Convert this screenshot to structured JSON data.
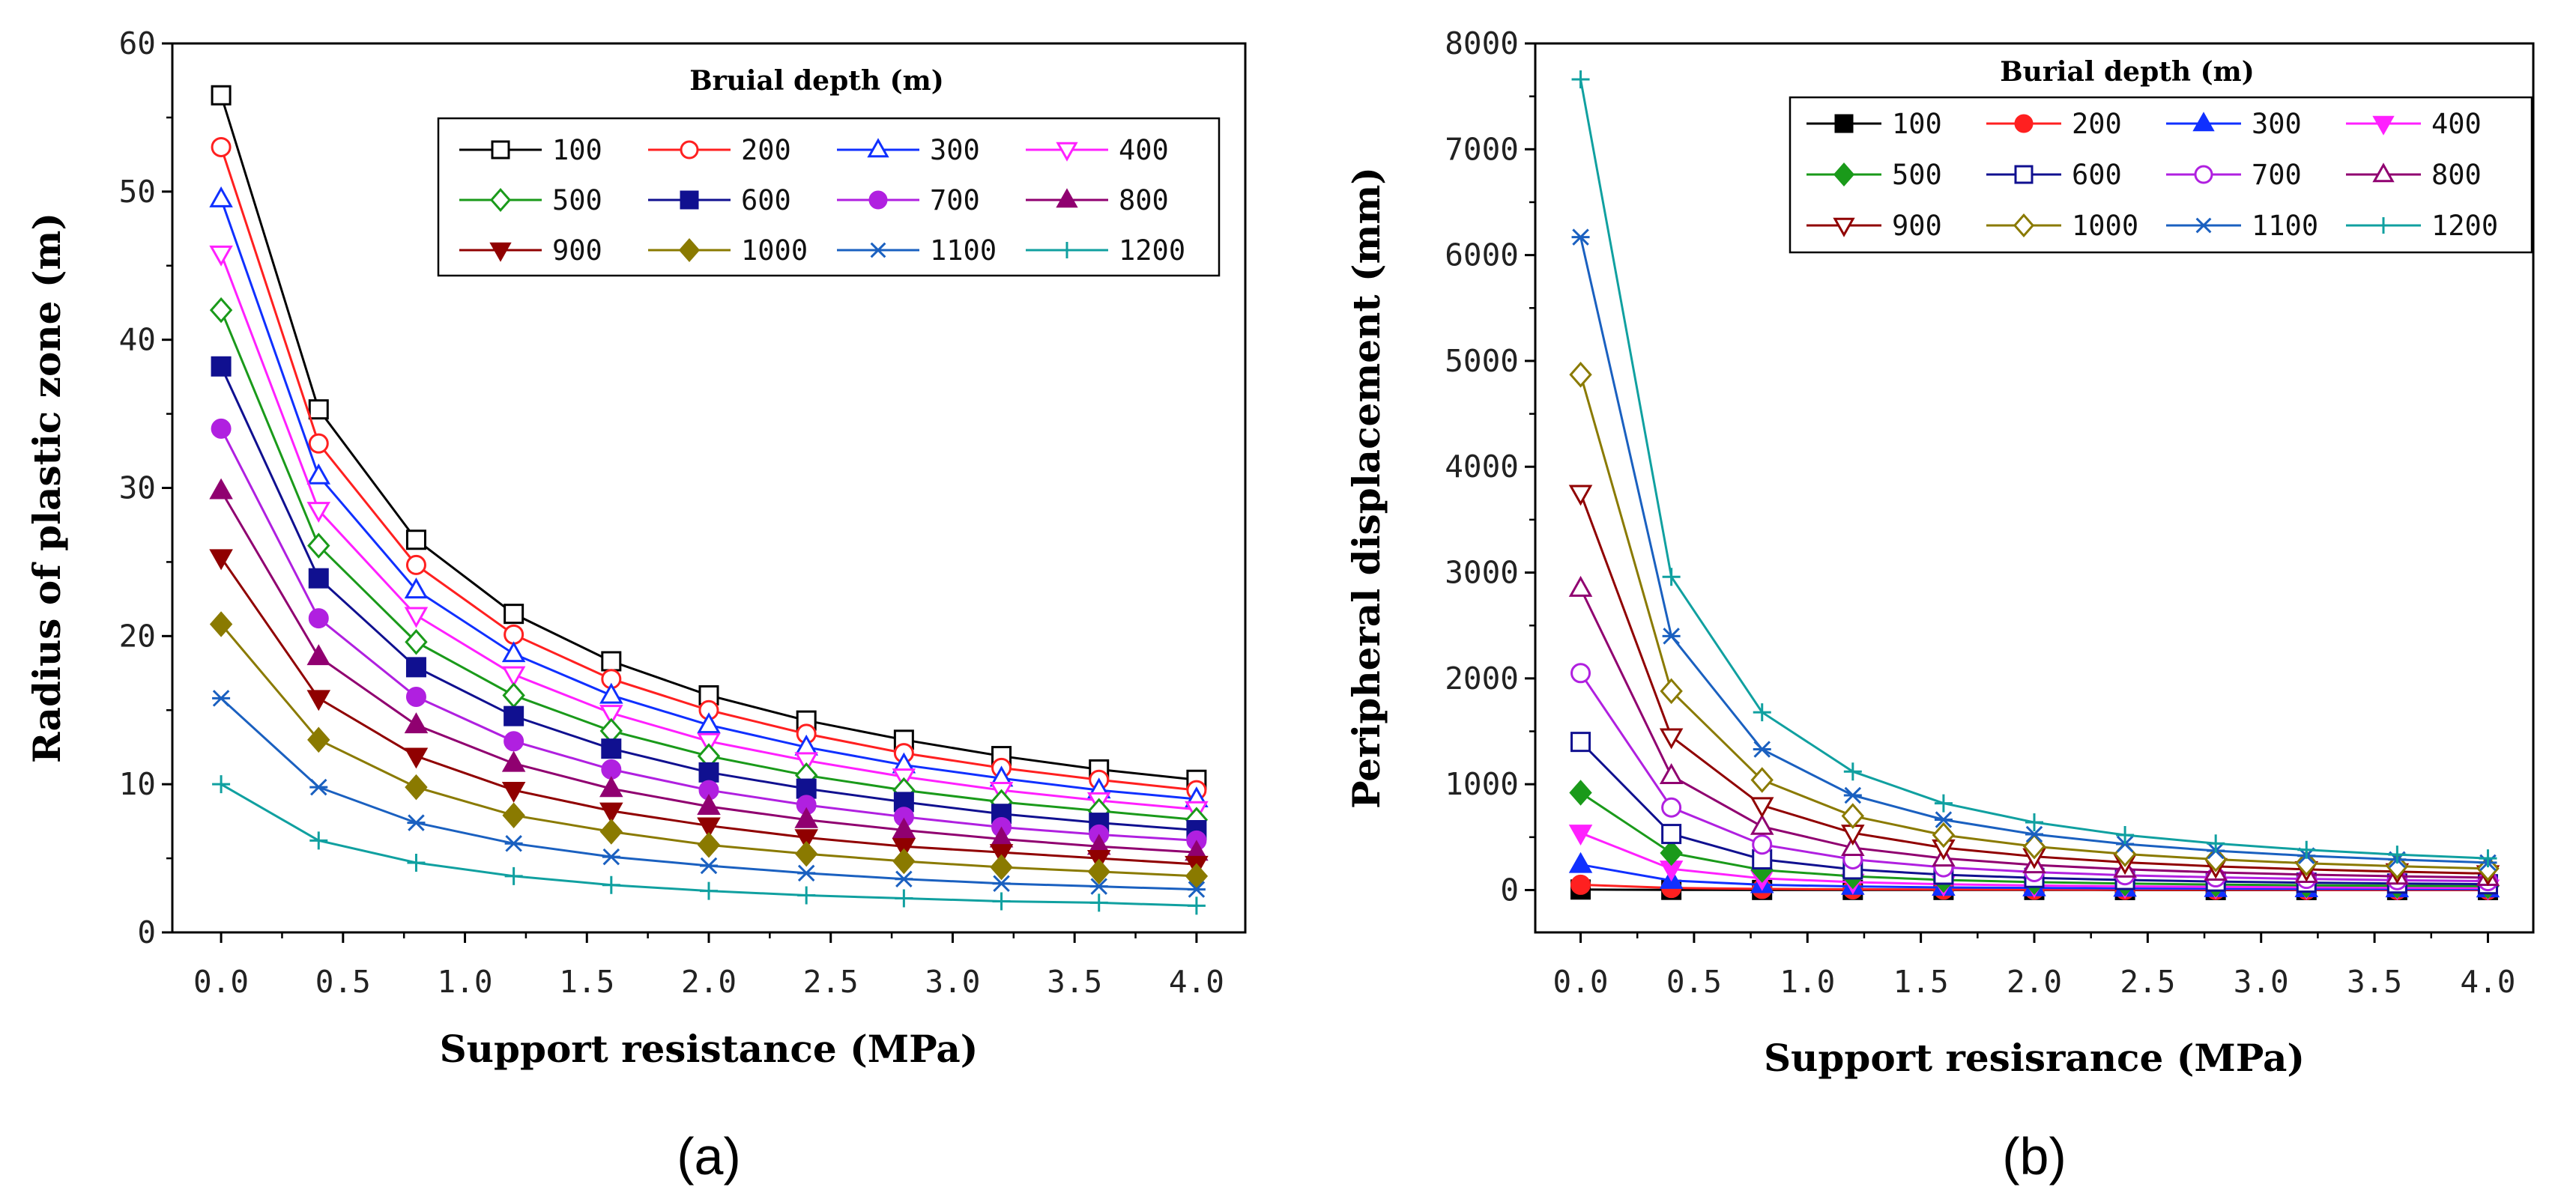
{
  "colors": {
    "100": "#000000",
    "200": "#ff2020",
    "300": "#1030ff",
    "400": "#ff20ff",
    "500": "#1a9a1a",
    "600": "#101090",
    "700": "#b020e0",
    "800": "#900070",
    "900": "#900000",
    "1000": "#8a7a00",
    "1100": "#1a60c0",
    "1200": "#10a0a0"
  },
  "chart_data": [
    {
      "type": "line",
      "caption": "(a)",
      "xlabel": "Support resistance (MPa)",
      "ylabel": "Radius of plastic zone (m)",
      "legend_title": "Bruial depth (m)",
      "legend_position": "top-right",
      "xlim": [
        -0.2,
        4.2
      ],
      "ylim": [
        0,
        60
      ],
      "x_ticks": [
        0,
        0.5,
        1.0,
        1.5,
        2.0,
        2.5,
        3.0,
        3.5,
        4.0
      ],
      "x_tick_labels": [
        "0.0",
        "0.5",
        "1.0",
        "1.5",
        "2.0",
        "2.5",
        "3.0",
        "3.5",
        "4.0"
      ],
      "y_ticks": [
        0,
        10,
        20,
        30,
        40,
        50,
        60
      ],
      "y_tick_labels": [
        "0",
        "10",
        "20",
        "30",
        "40",
        "50",
        "60"
      ],
      "x": [
        0,
        0.4,
        0.8,
        1.2,
        1.6,
        2.0,
        2.4,
        2.8,
        3.2,
        3.6,
        4.0
      ],
      "series": [
        {
          "name": "100",
          "marker": "square-open",
          "values": [
            56.5,
            35.3,
            26.5,
            21.5,
            18.3,
            16.0,
            14.3,
            13.0,
            11.9,
            11.0,
            10.3
          ]
        },
        {
          "name": "200",
          "marker": "circle-open",
          "values": [
            53.0,
            33.0,
            24.8,
            20.1,
            17.1,
            15.0,
            13.4,
            12.1,
            11.1,
            10.3,
            9.6
          ]
        },
        {
          "name": "300",
          "marker": "triangle-up-open",
          "values": [
            49.5,
            30.8,
            23.1,
            18.8,
            16.0,
            14.0,
            12.5,
            11.3,
            10.4,
            9.6,
            9.0
          ]
        },
        {
          "name": "400",
          "marker": "triangle-down-open",
          "values": [
            45.8,
            28.5,
            21.4,
            17.4,
            14.8,
            12.9,
            11.6,
            10.5,
            9.6,
            8.9,
            8.3
          ]
        },
        {
          "name": "500",
          "marker": "diamond-open",
          "values": [
            42.0,
            26.1,
            19.6,
            16.0,
            13.6,
            11.9,
            10.6,
            9.6,
            8.8,
            8.2,
            7.6
          ]
        },
        {
          "name": "600",
          "marker": "square",
          "values": [
            38.2,
            23.9,
            17.9,
            14.6,
            12.4,
            10.8,
            9.7,
            8.8,
            8.0,
            7.4,
            6.9
          ]
        },
        {
          "name": "700",
          "marker": "circle",
          "values": [
            34.0,
            21.2,
            15.9,
            12.9,
            11.0,
            9.6,
            8.6,
            7.8,
            7.1,
            6.6,
            6.2
          ]
        },
        {
          "name": "800",
          "marker": "triangle-up",
          "values": [
            29.8,
            18.6,
            14.0,
            11.4,
            9.7,
            8.5,
            7.6,
            6.9,
            6.3,
            5.8,
            5.4
          ]
        },
        {
          "name": "900",
          "marker": "triangle-down",
          "values": [
            25.3,
            15.8,
            11.9,
            9.6,
            8.2,
            7.2,
            6.4,
            5.8,
            5.4,
            5.0,
            4.6
          ]
        },
        {
          "name": "1000",
          "marker": "diamond",
          "values": [
            20.8,
            13.0,
            9.8,
            7.9,
            6.8,
            5.9,
            5.3,
            4.8,
            4.4,
            4.1,
            3.8
          ]
        },
        {
          "name": "1100",
          "marker": "star",
          "values": [
            15.8,
            9.8,
            7.4,
            6.0,
            5.1,
            4.5,
            4.0,
            3.6,
            3.3,
            3.1,
            2.9
          ]
        },
        {
          "name": "1200",
          "marker": "plus",
          "values": [
            10.0,
            6.2,
            4.7,
            3.8,
            3.2,
            2.8,
            2.5,
            2.3,
            2.1,
            2.0,
            1.8
          ]
        }
      ]
    },
    {
      "type": "line",
      "caption": "(b)",
      "xlabel": "Support resisrance (MPa)",
      "ylabel": "Peripheral displacement (mm)",
      "legend_title": "Burial depth (m)",
      "legend_position": "top-right",
      "xlim": [
        -0.2,
        4.2
      ],
      "ylim": [
        -400,
        8000
      ],
      "x_ticks": [
        0,
        0.5,
        1.0,
        1.5,
        2.0,
        2.5,
        3.0,
        3.5,
        4.0
      ],
      "x_tick_labels": [
        "0.0",
        "0.5",
        "1.0",
        "1.5",
        "2.0",
        "2.5",
        "3.0",
        "3.5",
        "4.0"
      ],
      "y_ticks": [
        0,
        1000,
        2000,
        3000,
        4000,
        5000,
        6000,
        7000,
        8000
      ],
      "y_tick_labels": [
        "0",
        "1000",
        "2000",
        "3000",
        "4000",
        "5000",
        "6000",
        "7000",
        "8000"
      ],
      "x": [
        0,
        0.4,
        0.8,
        1.2,
        1.6,
        2.0,
        2.4,
        2.8,
        3.2,
        3.6,
        4.0
      ],
      "series": [
        {
          "name": "100",
          "marker": "square",
          "values": [
            5,
            2,
            1,
            1,
            1,
            1,
            0,
            0,
            0,
            0,
            0
          ]
        },
        {
          "name": "200",
          "marker": "circle",
          "values": [
            50,
            20,
            11,
            7,
            5,
            4,
            3,
            3,
            2,
            2,
            2
          ]
        },
        {
          "name": "300",
          "marker": "triangle-up",
          "values": [
            240,
            90,
            50,
            34,
            25,
            20,
            16,
            13,
            11,
            10,
            9
          ]
        },
        {
          "name": "400",
          "marker": "triangle-down",
          "values": [
            540,
            200,
            110,
            75,
            55,
            43,
            35,
            30,
            26,
            23,
            20
          ]
        },
        {
          "name": "500",
          "marker": "diamond",
          "values": [
            920,
            350,
            190,
            130,
            95,
            75,
            62,
            52,
            45,
            40,
            36
          ]
        },
        {
          "name": "600",
          "marker": "square-open",
          "values": [
            1400,
            530,
            290,
            195,
            145,
            115,
            95,
            80,
            70,
            62,
            55
          ]
        },
        {
          "name": "700",
          "marker": "circle-open",
          "values": [
            2050,
            780,
            430,
            290,
            215,
            170,
            140,
            120,
            105,
            93,
            84
          ]
        },
        {
          "name": "800",
          "marker": "triangle-up-open",
          "values": [
            2850,
            1080,
            600,
            400,
            300,
            237,
            196,
            167,
            146,
            130,
            117
          ]
        },
        {
          "name": "900",
          "marker": "triangle-down-open",
          "values": [
            3750,
            1450,
            800,
            540,
            400,
            317,
            262,
            224,
            195,
            174,
            156
          ]
        },
        {
          "name": "1000",
          "marker": "diamond-open",
          "values": [
            4870,
            1880,
            1040,
            700,
            520,
            412,
            340,
            290,
            253,
            225,
            203
          ]
        },
        {
          "name": "1100",
          "marker": "star",
          "values": [
            6170,
            2400,
            1330,
            895,
            665,
            527,
            435,
            371,
            324,
            288,
            259
          ]
        },
        {
          "name": "1200",
          "marker": "plus",
          "values": [
            7660,
            2960,
            1680,
            1120,
            820,
            640,
            520,
            440,
            380,
            335,
            300
          ]
        }
      ]
    }
  ]
}
